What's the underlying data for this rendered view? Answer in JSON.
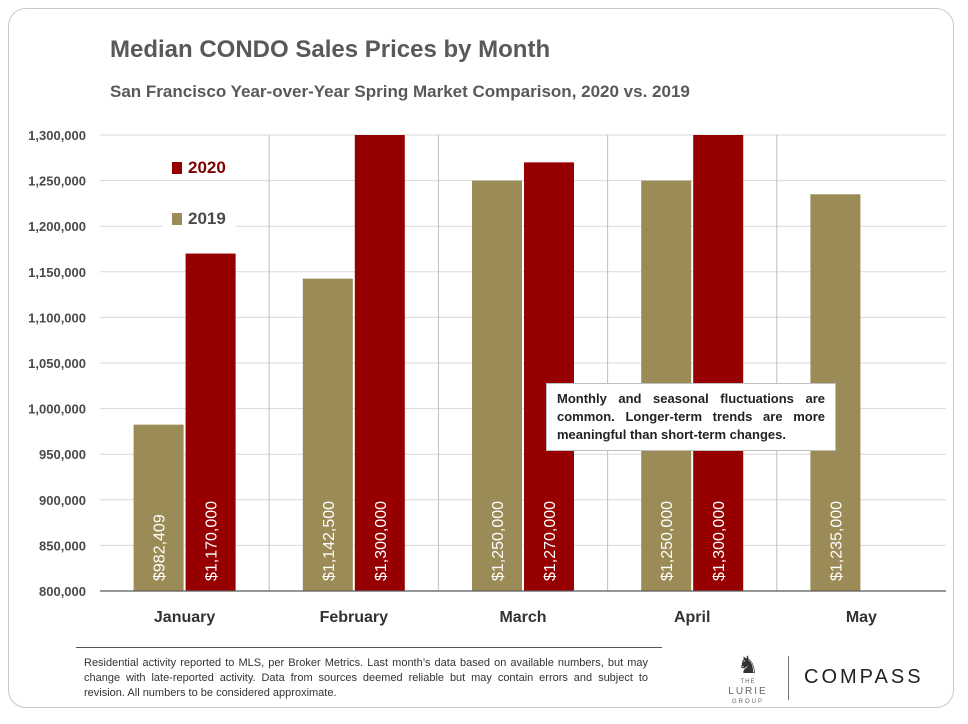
{
  "title": "Median CONDO Sales Prices by Month",
  "subtitle": "San Francisco Year-over-Year Spring Market Comparison,  2020 vs. 2019",
  "legend": {
    "series_2020": "2020",
    "series_2019": "2019"
  },
  "note": "Monthly and seasonal fluctuations are common. Longer-term trends are more meaningful than short-term changes.",
  "footnote": "Residential activity reported to MLS, per Broker Metrics. Last month’s data based on available numbers, but may change with late-reported activity. Data from sources deemed reliable but may contain errors and subject to revision. All numbers to be considered approximate.",
  "logos": {
    "lurie_the": "THE",
    "lurie_name": "LURIE",
    "lurie_group": "GROUP",
    "compass": "COMPASS"
  },
  "colors": {
    "series_2019": "#9b8c57",
    "series_2020": "#960000",
    "axis_text": "#4a4a4a",
    "gridline": "#d9d9d9"
  },
  "chart_data": {
    "type": "bar",
    "categories": [
      "January",
      "February",
      "March",
      "April",
      "May"
    ],
    "series": [
      {
        "name": "2019",
        "values": [
          982409,
          1142500,
          1250000,
          1250000,
          1235000
        ],
        "labels": [
          "$982,409",
          "$1,142,500",
          "$1,250,000",
          "$1,250,000",
          "$1,235,000"
        ]
      },
      {
        "name": "2020",
        "values": [
          1170000,
          1300000,
          1270000,
          1300000,
          null
        ],
        "labels": [
          "$1,170,000",
          "$1,300,000",
          "$1,270,000",
          "$1,300,000",
          null
        ]
      }
    ],
    "ylim": [
      800000,
      1300000
    ],
    "yticks": [
      800000,
      850000,
      900000,
      950000,
      1000000,
      1050000,
      1100000,
      1150000,
      1200000,
      1250000,
      1300000
    ],
    "ytick_labels": [
      "800,000",
      "850,000",
      "900,000",
      "950,000",
      "1,000,000",
      "1,050,000",
      "1,100,000",
      "1,150,000",
      "1,200,000",
      "1,250,000",
      "1,300,000"
    ],
    "xlabel": "",
    "ylabel": "",
    "grid": true,
    "legend_position": "top-left"
  }
}
